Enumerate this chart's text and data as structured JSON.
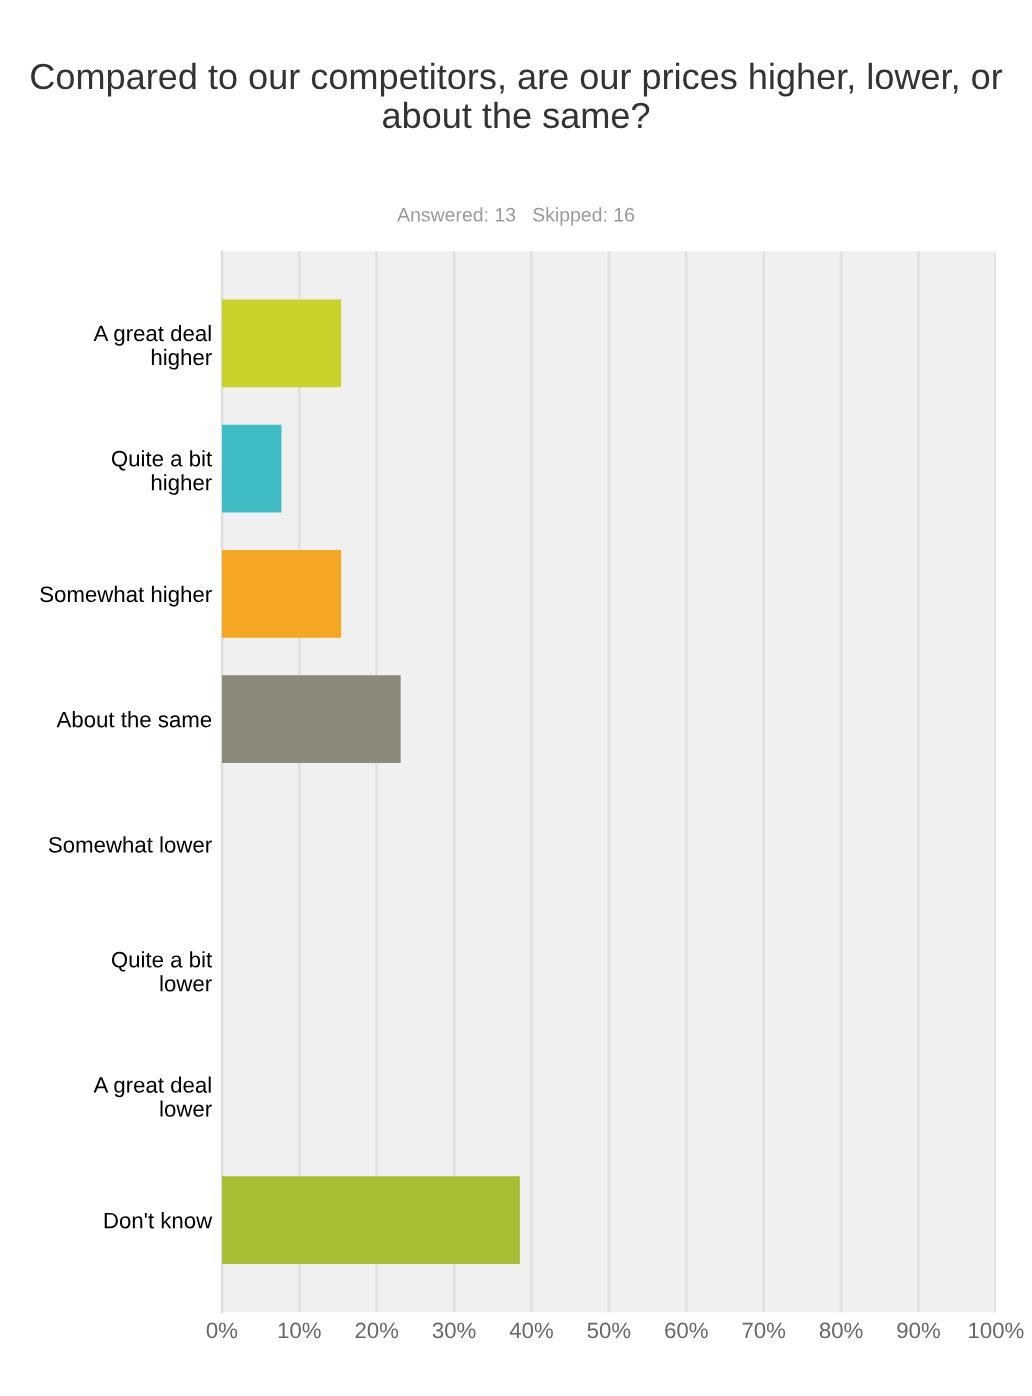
{
  "chart_data": {
    "type": "bar",
    "orientation": "horizontal",
    "title": "Compared to our competitors, are our prices higher, lower, or about the same?",
    "subtitle": "Answered: 13   Skipped: 16",
    "categories": [
      "A great deal\nhigher",
      "Quite a bit\nhigher",
      "Somewhat higher",
      "About the same",
      "Somewhat lower",
      "Quite a bit\nlower",
      "A great deal\nlower",
      "Don't know"
    ],
    "values": [
      15.4,
      7.7,
      15.4,
      23.1,
      0,
      0,
      0,
      38.5
    ],
    "colors": [
      "#c9d22b",
      "#3fbcc4",
      "#f5a623",
      "#8b8a78",
      "#a3a3a3",
      "#a3a3a3",
      "#a3a3a3",
      "#a5be34"
    ],
    "xlim": [
      0,
      100
    ],
    "xticks": [
      {
        "value": 0,
        "label": "0%"
      },
      {
        "value": 10,
        "label": "10%"
      },
      {
        "value": 20,
        "label": "20%"
      },
      {
        "value": 30,
        "label": "30%"
      },
      {
        "value": 40,
        "label": "40%"
      },
      {
        "value": 50,
        "label": "50%"
      },
      {
        "value": 60,
        "label": "60%"
      },
      {
        "value": 70,
        "label": "70%"
      },
      {
        "value": 80,
        "label": "80%"
      },
      {
        "value": 90,
        "label": "90%"
      },
      {
        "value": 100,
        "label": "100%"
      }
    ],
    "grid": "x"
  }
}
